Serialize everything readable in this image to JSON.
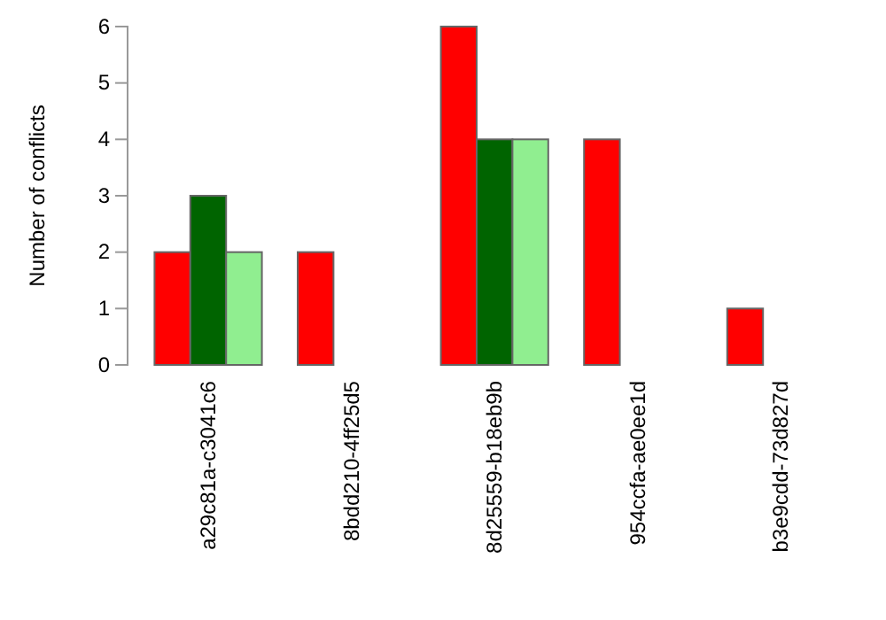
{
  "chart_data": {
    "type": "bar",
    "ylabel": "Number of conflicts",
    "categories": [
      "a29c81a-c3041c6",
      "8bdd210-4ff25d5",
      "8d25559-b18eb9b",
      "954ccfa-ae0ee1d",
      "b3e9cdd-73d827d"
    ],
    "series": [
      {
        "color": "#ff0000",
        "values": [
          2,
          2,
          6,
          4,
          1
        ]
      },
      {
        "color": "#006400",
        "values": [
          3,
          0,
          4,
          0,
          0
        ]
      },
      {
        "color": "#90ee90",
        "values": [
          2,
          0,
          4,
          0,
          0
        ]
      }
    ],
    "ylim": [
      0,
      6
    ],
    "yticks": [
      0,
      1,
      2,
      3,
      4,
      5,
      6
    ],
    "grid": false,
    "legend": false
  }
}
